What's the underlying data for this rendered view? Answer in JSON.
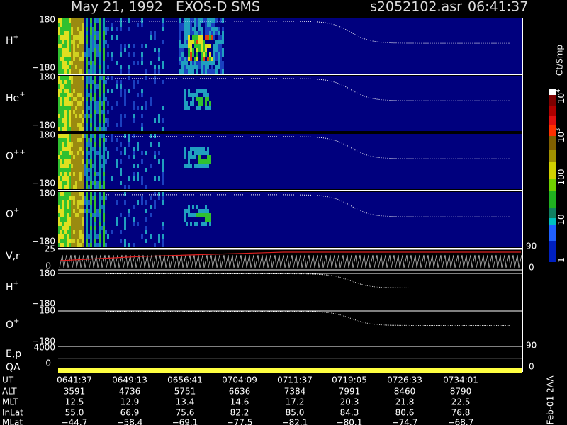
{
  "header": {
    "title": "May 21, 1992   EXOS-D SMS",
    "file": "s2052102.asr",
    "time": "06:41:37"
  },
  "panels": [
    {
      "species": "H",
      "charge": "+",
      "top": "180",
      "bottom": "−180"
    },
    {
      "species": "He",
      "charge": "+",
      "top": "180",
      "bottom": "−180"
    },
    {
      "species": "O",
      "charge": "++",
      "top": "180",
      "bottom": "−180"
    },
    {
      "species": "O",
      "charge": "+",
      "top": "180",
      "bottom": "−180"
    }
  ],
  "vr": {
    "label": "V,r",
    "left_top": "25",
    "left_bottom": "0",
    "right_top": "90",
    "right_bottom": "0"
  },
  "lower_panels": [
    {
      "species": "H",
      "charge": "+",
      "top": "180",
      "bottom": "−180"
    },
    {
      "species": "O",
      "charge": "+",
      "top": "180",
      "bottom": "−180"
    }
  ],
  "ep": {
    "label": "E,p",
    "left_top": "4000",
    "left_bottom": "0",
    "right_top": "90",
    "right_bottom": "0"
  },
  "qa": {
    "label": "QA"
  },
  "colorbar": {
    "unit": "Ct/Smp",
    "ticks": [
      {
        "base": "10",
        "exp": "4"
      },
      {
        "base": "10",
        "exp": "3"
      },
      {
        "base": "100"
      },
      {
        "base": "10"
      },
      {
        "base": "1"
      }
    ]
  },
  "footer": {
    "rows": [
      {
        "label": "UT",
        "values": [
          "0641:37",
          "0649:13",
          "0656:41",
          "0704:09",
          "0711:37",
          "0719:05",
          "0726:33",
          "0734:01"
        ]
      },
      {
        "label": "ALT",
        "values": [
          "3591",
          "4736",
          "5751",
          "6636",
          "7384",
          "7991",
          "8460",
          "8790"
        ]
      },
      {
        "label": "MLT",
        "values": [
          "12.5",
          "12.9",
          "13.4",
          "14.6",
          "17.2",
          "20.3",
          "21.8",
          "22.5"
        ]
      },
      {
        "label": "InLat",
        "values": [
          "55.0",
          "66.9",
          "75.6",
          "82.2",
          "85.0",
          "84.3",
          "80.6",
          "76.8"
        ]
      },
      {
        "label": "MLat",
        "values": [
          "−44.7",
          "−58.4",
          "−69.1",
          "−77.5",
          "−82.1",
          "−80.1",
          "−74.7",
          "−68.7"
        ]
      }
    ]
  },
  "note": "Feb-01 2AA"
}
